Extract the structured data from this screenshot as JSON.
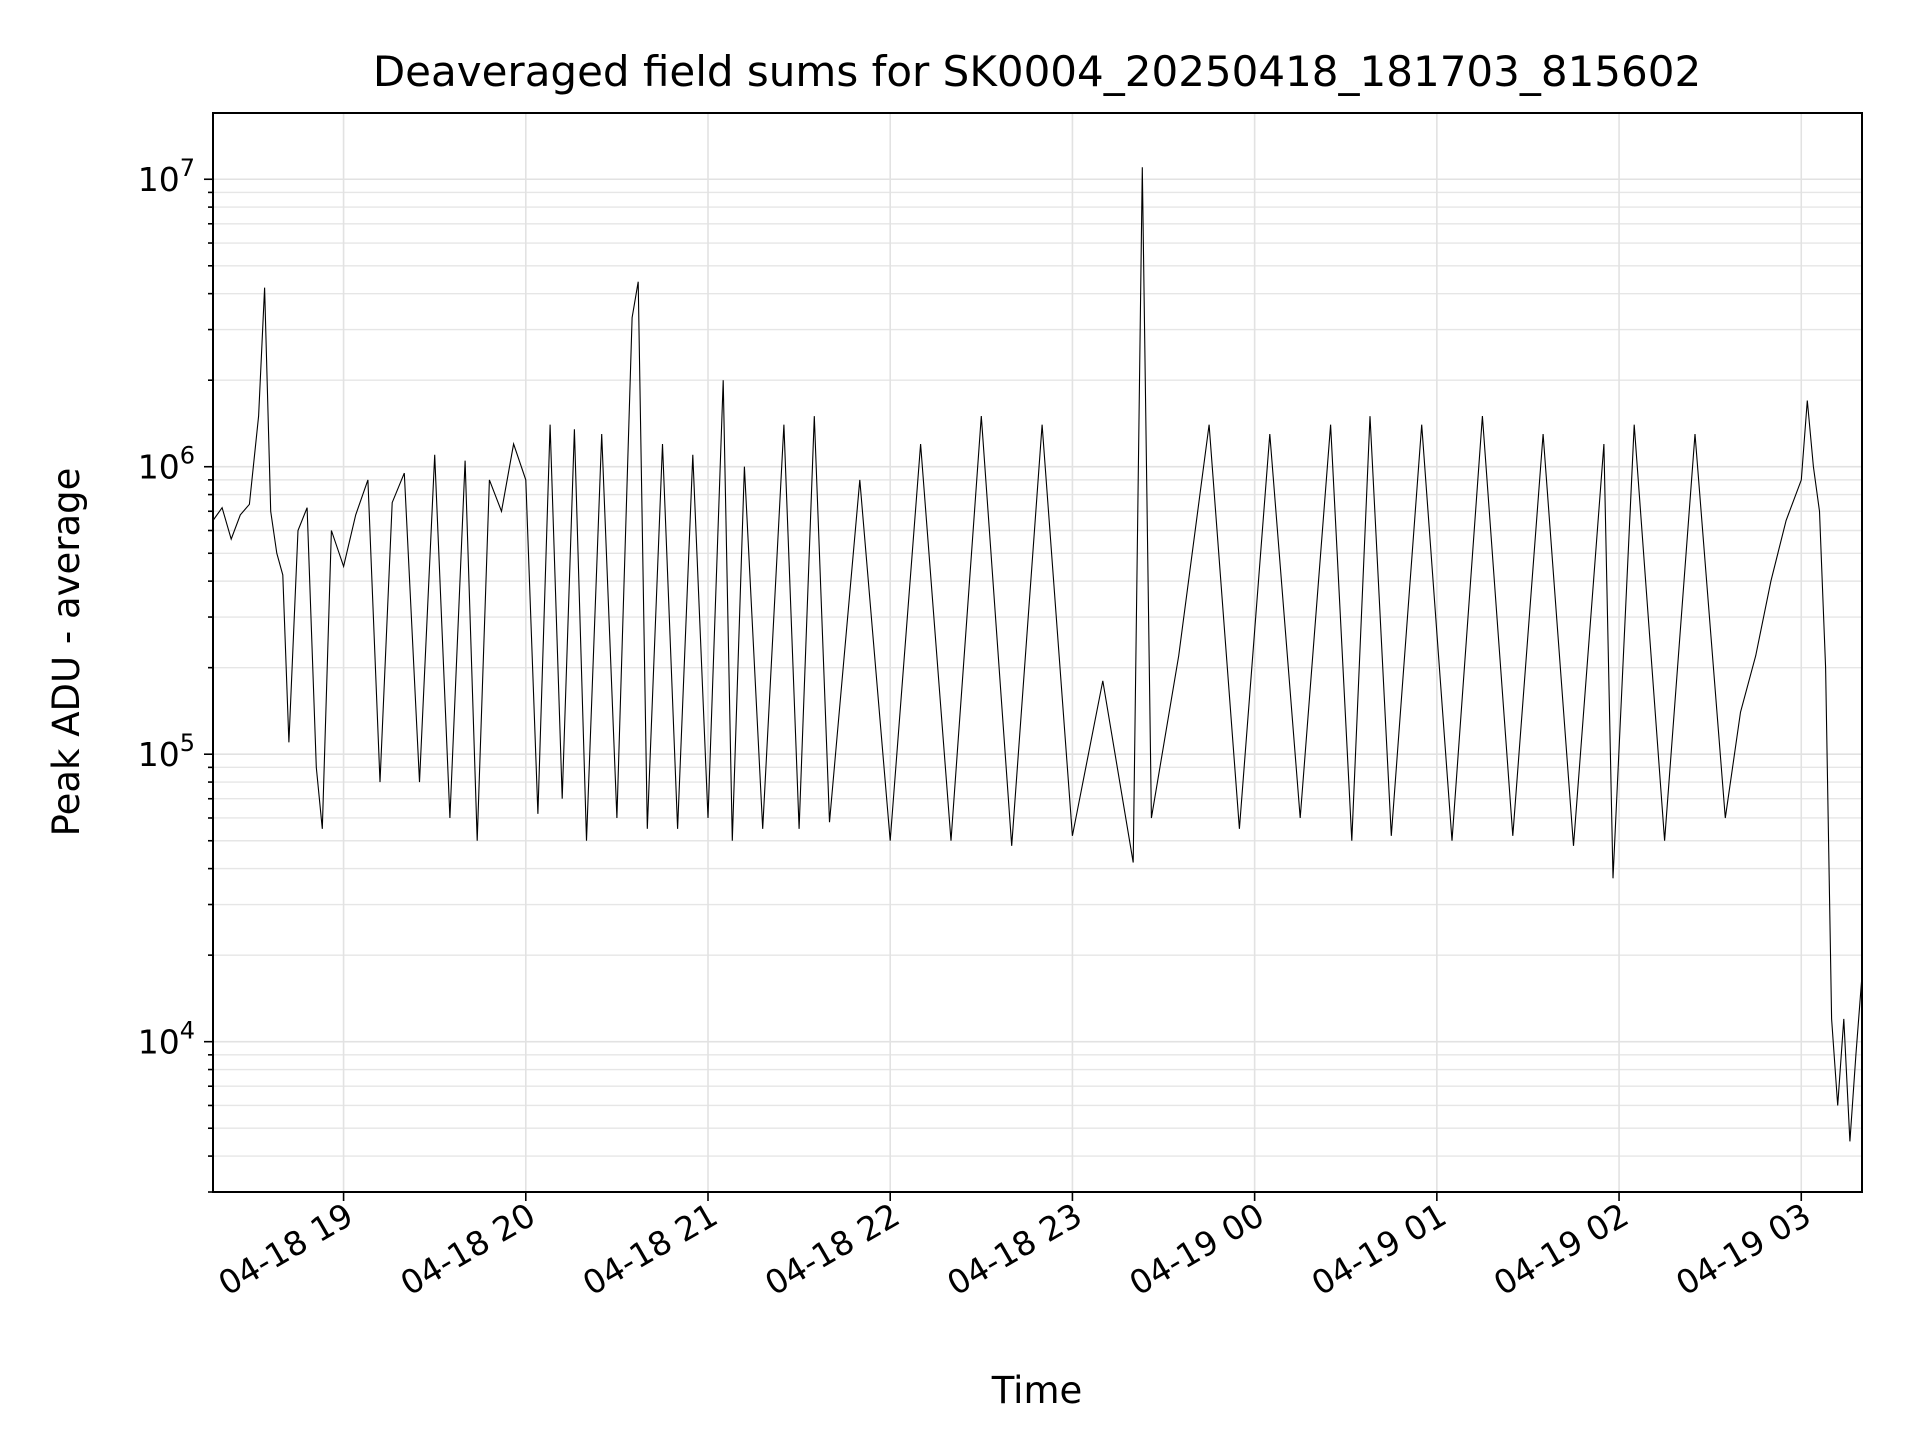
{
  "chart_data": {
    "type": "line",
    "title": "Deaveraged field sums for SK0004_20250418_181703_815602",
    "xlabel": "Time",
    "ylabel": "Peak ADU - average",
    "yscale": "log",
    "grid": true,
    "line_color": "#000000",
    "xlim": [
      "2025-04-18 18:17",
      "2025-04-19 03:20"
    ],
    "ylim": [
      3000,
      17000000
    ],
    "x_ticks": [
      {
        "label": "04-18 19",
        "t": "2025-04-18 19:00"
      },
      {
        "label": "04-18 20",
        "t": "2025-04-18 20:00"
      },
      {
        "label": "04-18 21",
        "t": "2025-04-18 21:00"
      },
      {
        "label": "04-18 22",
        "t": "2025-04-18 22:00"
      },
      {
        "label": "04-18 23",
        "t": "2025-04-18 23:00"
      },
      {
        "label": "04-19 00",
        "t": "2025-04-19 00:00"
      },
      {
        "label": "04-19 01",
        "t": "2025-04-19 01:00"
      },
      {
        "label": "04-19 02",
        "t": "2025-04-19 02:00"
      },
      {
        "label": "04-19 03",
        "t": "2025-04-19 03:00"
      }
    ],
    "y_ticks": [
      {
        "base": "10",
        "exp": "4",
        "value": 10000
      },
      {
        "base": "10",
        "exp": "5",
        "value": 100000
      },
      {
        "base": "10",
        "exp": "6",
        "value": 1000000
      },
      {
        "base": "10",
        "exp": "7",
        "value": 10000000
      }
    ],
    "series": [
      {
        "points": [
          [
            "2025-04-18 18:17",
            650000
          ],
          [
            "2025-04-18 18:20",
            720000
          ],
          [
            "2025-04-18 18:23",
            560000
          ],
          [
            "2025-04-18 18:26",
            680000
          ],
          [
            "2025-04-18 18:29",
            740000
          ],
          [
            "2025-04-18 18:32",
            1500000
          ],
          [
            "2025-04-18 18:34",
            4200000
          ],
          [
            "2025-04-18 18:36",
            700000
          ],
          [
            "2025-04-18 18:38",
            500000
          ],
          [
            "2025-04-18 18:40",
            420000
          ],
          [
            "2025-04-18 18:42",
            110000
          ],
          [
            "2025-04-18 18:45",
            600000
          ],
          [
            "2025-04-18 18:48",
            720000
          ],
          [
            "2025-04-18 18:51",
            90000
          ],
          [
            "2025-04-18 18:53",
            55000
          ],
          [
            "2025-04-18 18:56",
            600000
          ],
          [
            "2025-04-18 19:00",
            450000
          ],
          [
            "2025-04-18 19:04",
            680000
          ],
          [
            "2025-04-18 19:08",
            900000
          ],
          [
            "2025-04-18 19:12",
            80000
          ],
          [
            "2025-04-18 19:16",
            750000
          ],
          [
            "2025-04-18 19:20",
            950000
          ],
          [
            "2025-04-18 19:25",
            80000
          ],
          [
            "2025-04-18 19:30",
            1100000
          ],
          [
            "2025-04-18 19:35",
            60000
          ],
          [
            "2025-04-18 19:40",
            1050000
          ],
          [
            "2025-04-18 19:44",
            50000
          ],
          [
            "2025-04-18 19:48",
            900000
          ],
          [
            "2025-04-18 19:52",
            700000
          ],
          [
            "2025-04-18 19:56",
            1200000
          ],
          [
            "2025-04-18 20:00",
            900000
          ],
          [
            "2025-04-18 20:04",
            62000
          ],
          [
            "2025-04-18 20:08",
            1400000
          ],
          [
            "2025-04-18 20:12",
            70000
          ],
          [
            "2025-04-18 20:16",
            1350000
          ],
          [
            "2025-04-18 20:20",
            50000
          ],
          [
            "2025-04-18 20:25",
            1300000
          ],
          [
            "2025-04-18 20:30",
            60000
          ],
          [
            "2025-04-18 20:35",
            3300000
          ],
          [
            "2025-04-18 20:37",
            4400000
          ],
          [
            "2025-04-18 20:40",
            55000
          ],
          [
            "2025-04-18 20:45",
            1200000
          ],
          [
            "2025-04-18 20:50",
            55000
          ],
          [
            "2025-04-18 20:55",
            1100000
          ],
          [
            "2025-04-18 21:00",
            60000
          ],
          [
            "2025-04-18 21:05",
            2000000
          ],
          [
            "2025-04-18 21:08",
            50000
          ],
          [
            "2025-04-18 21:12",
            1000000
          ],
          [
            "2025-04-18 21:18",
            55000
          ],
          [
            "2025-04-18 21:25",
            1400000
          ],
          [
            "2025-04-18 21:30",
            55000
          ],
          [
            "2025-04-18 21:35",
            1500000
          ],
          [
            "2025-04-18 21:40",
            58000
          ],
          [
            "2025-04-18 21:50",
            900000
          ],
          [
            "2025-04-18 22:00",
            50000
          ],
          [
            "2025-04-18 22:10",
            1200000
          ],
          [
            "2025-04-18 22:20",
            50000
          ],
          [
            "2025-04-18 22:30",
            1500000
          ],
          [
            "2025-04-18 22:40",
            48000
          ],
          [
            "2025-04-18 22:50",
            1400000
          ],
          [
            "2025-04-18 23:00",
            52000
          ],
          [
            "2025-04-18 23:10",
            180000
          ],
          [
            "2025-04-18 23:20",
            42000
          ],
          [
            "2025-04-18 23:23",
            11000000
          ],
          [
            "2025-04-18 23:26",
            60000
          ],
          [
            "2025-04-18 23:35",
            220000
          ],
          [
            "2025-04-18 23:45",
            1400000
          ],
          [
            "2025-04-18 23:55",
            55000
          ],
          [
            "2025-04-19 00:05",
            1300000
          ],
          [
            "2025-04-19 00:15",
            60000
          ],
          [
            "2025-04-19 00:25",
            1400000
          ],
          [
            "2025-04-19 00:32",
            50000
          ],
          [
            "2025-04-19 00:38",
            1500000
          ],
          [
            "2025-04-19 00:45",
            52000
          ],
          [
            "2025-04-19 00:55",
            1400000
          ],
          [
            "2025-04-19 01:05",
            50000
          ],
          [
            "2025-04-19 01:15",
            1500000
          ],
          [
            "2025-04-19 01:25",
            52000
          ],
          [
            "2025-04-19 01:35",
            1300000
          ],
          [
            "2025-04-19 01:45",
            48000
          ],
          [
            "2025-04-19 01:55",
            1200000
          ],
          [
            "2025-04-19 01:58",
            37000
          ],
          [
            "2025-04-19 02:05",
            1400000
          ],
          [
            "2025-04-19 02:15",
            50000
          ],
          [
            "2025-04-19 02:25",
            1300000
          ],
          [
            "2025-04-19 02:35",
            60000
          ],
          [
            "2025-04-19 02:40",
            140000
          ],
          [
            "2025-04-19 02:45",
            220000
          ],
          [
            "2025-04-19 02:50",
            400000
          ],
          [
            "2025-04-19 02:55",
            650000
          ],
          [
            "2025-04-19 03:00",
            900000
          ],
          [
            "2025-04-19 03:02",
            1700000
          ],
          [
            "2025-04-19 03:04",
            1000000
          ],
          [
            "2025-04-19 03:06",
            700000
          ],
          [
            "2025-04-19 03:08",
            200000
          ],
          [
            "2025-04-19 03:10",
            12000
          ],
          [
            "2025-04-19 03:12",
            6000
          ],
          [
            "2025-04-19 03:14",
            12000
          ],
          [
            "2025-04-19 03:16",
            4500
          ],
          [
            "2025-04-19 03:18",
            9000
          ],
          [
            "2025-04-19 03:20",
            17000
          ]
        ]
      }
    ]
  }
}
